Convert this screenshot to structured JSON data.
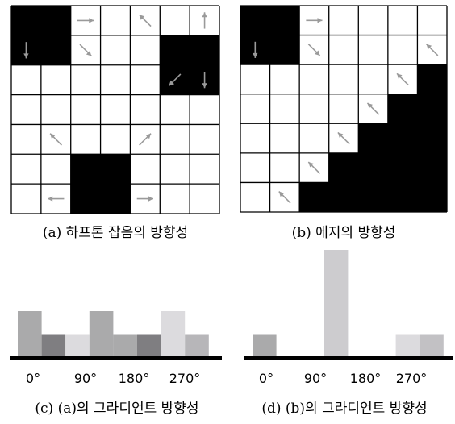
{
  "panels": [
    {
      "id": "a",
      "caption": "(a) 하프톤 잡음의 방향성",
      "grid": [
        [
          1,
          1,
          0,
          0,
          0,
          0,
          0
        ],
        [
          1,
          1,
          0,
          0,
          0,
          1,
          1
        ],
        [
          0,
          0,
          0,
          0,
          0,
          1,
          1
        ],
        [
          0,
          0,
          0,
          0,
          0,
          0,
          0
        ],
        [
          0,
          0,
          0,
          0,
          0,
          0,
          0
        ],
        [
          0,
          0,
          1,
          1,
          0,
          0,
          0
        ],
        [
          0,
          0,
          1,
          1,
          0,
          0,
          0
        ]
      ],
      "arrows": [
        {
          "row": 0,
          "col": 2,
          "dir": "right"
        },
        {
          "row": 0,
          "col": 4,
          "dir": "up-left"
        },
        {
          "row": 0,
          "col": 6,
          "dir": "up"
        },
        {
          "row": 1,
          "col": 0,
          "dir": "down"
        },
        {
          "row": 1,
          "col": 2,
          "dir": "down-right"
        },
        {
          "row": 2,
          "col": 6,
          "dir": "down"
        },
        {
          "row": 2,
          "col": 5,
          "dir": "down-left"
        },
        {
          "row": 4,
          "col": 1,
          "dir": "up-left"
        },
        {
          "row": 4,
          "col": 4,
          "dir": "up-right"
        },
        {
          "row": 6,
          "col": 1,
          "dir": "left"
        },
        {
          "row": 6,
          "col": 4,
          "dir": "right"
        }
      ]
    },
    {
      "id": "b",
      "caption": "(b) 에지의 방향성",
      "grid": [
        [
          1,
          1,
          0,
          0,
          0,
          0,
          0
        ],
        [
          1,
          1,
          0,
          0,
          0,
          0,
          0
        ],
        [
          0,
          0,
          0,
          0,
          0,
          0,
          1
        ],
        [
          0,
          0,
          0,
          0,
          0,
          1,
          1
        ],
        [
          0,
          0,
          0,
          0,
          1,
          1,
          1
        ],
        [
          0,
          0,
          0,
          1,
          1,
          1,
          1
        ],
        [
          0,
          0,
          1,
          1,
          1,
          1,
          1
        ]
      ],
      "arrows": [
        {
          "row": 0,
          "col": 2,
          "dir": "right"
        },
        {
          "row": 1,
          "col": 0,
          "dir": "down"
        },
        {
          "row": 1,
          "col": 2,
          "dir": "down-right"
        },
        {
          "row": 1,
          "col": 6,
          "dir": "up-left"
        },
        {
          "row": 2,
          "col": 5,
          "dir": "up-left"
        },
        {
          "row": 3,
          "col": 4,
          "dir": "up-left"
        },
        {
          "row": 4,
          "col": 3,
          "dir": "up-left"
        },
        {
          "row": 5,
          "col": 2,
          "dir": "up-left"
        },
        {
          "row": 6,
          "col": 1,
          "dir": "up-left"
        }
      ]
    }
  ],
  "chart_data": [
    {
      "type": "bar",
      "caption": "(c) (a)의 그라디언트 방향성",
      "tick_labels": [
        "0°",
        "90°",
        "180°",
        "270°"
      ],
      "values": [
        2,
        1,
        1,
        2,
        1,
        1,
        2,
        1
      ],
      "colors": [
        "#aaaaab",
        "#7f7e81",
        "#dcdbde",
        "#aaaaab",
        "#aaaaab",
        "#7f7e81",
        "#dcdbde",
        "#b7b6b9"
      ],
      "ylim": [
        0,
        5
      ]
    },
    {
      "type": "bar",
      "caption": "(d) (b)의 그라디언트 방향성",
      "tick_labels": [
        "0°",
        "90°",
        "180°",
        "270°"
      ],
      "values": [
        1,
        0,
        0,
        5,
        0,
        0,
        1,
        1
      ],
      "colors": [
        "#aaaaab",
        "#aaaaab",
        "#aaaaab",
        "#cdcccf",
        "#aaaaab",
        "#aaaaab",
        "#dcdbde",
        "#c2c1c4"
      ],
      "ylim": [
        0,
        5
      ]
    }
  ]
}
